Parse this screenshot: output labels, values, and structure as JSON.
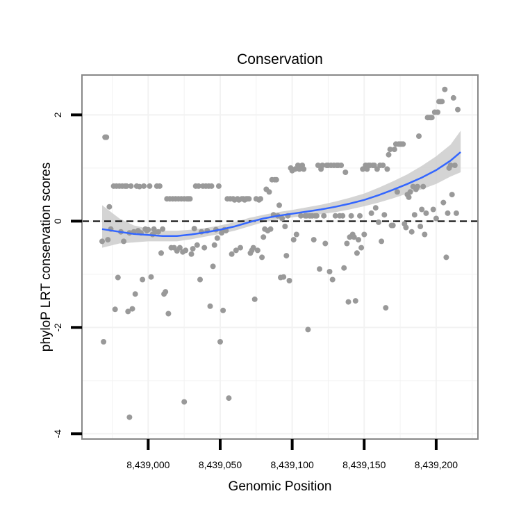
{
  "chart_data": {
    "type": "scatter",
    "title": "Conservation",
    "xlabel": "Genomic Position",
    "ylabel": "phyloP LRT conservation scores",
    "xlim": [
      8438954,
      8439229
    ],
    "ylim": [
      -4.1,
      2.75
    ],
    "xticks": [
      8439000,
      8439050,
      8439100,
      8439150,
      8439200
    ],
    "xtick_labels": [
      "8,439,000",
      "8,439,050",
      "8,439,100",
      "8,439,150",
      "8,439,200"
    ],
    "yticks": [
      -4,
      -2,
      0,
      2
    ],
    "ytick_labels": [
      "-4",
      "-2",
      "0",
      "2"
    ],
    "reference_line": {
      "y": 0,
      "style": "dashed",
      "color": "#000000"
    },
    "colors": {
      "points": "#999999",
      "smooth_line": "#3366ff",
      "confidence_band": "#cccccc",
      "panel_border": "#888888",
      "grid": "#f2f2f2"
    },
    "grid": true,
    "series": [
      {
        "name": "phyloP scores",
        "points": [
          [
            8438968,
            -0.38
          ],
          [
            8438969,
            -2.27
          ],
          [
            8438970,
            1.58
          ],
          [
            8438971,
            1.58
          ],
          [
            8438972,
            -0.35
          ],
          [
            8438973,
            0.27
          ],
          [
            8438974,
            -0.15
          ],
          [
            8438976,
            0.66
          ],
          [
            8438977,
            -1.66
          ],
          [
            8438978,
            0.66
          ],
          [
            8438979,
            -1.06
          ],
          [
            8438980,
            0.66
          ],
          [
            8438981,
            -0.2
          ],
          [
            8438982,
            0.66
          ],
          [
            8438983,
            -0.38
          ],
          [
            8438984,
            0.66
          ],
          [
            8438985,
            0.66
          ],
          [
            8438986,
            -1.7
          ],
          [
            8438987,
            -0.22
          ],
          [
            8438987,
            -3.69
          ],
          [
            8438988,
            0.66
          ],
          [
            8438989,
            -1.65
          ],
          [
            8438990,
            -0.2
          ],
          [
            8438991,
            -1.37
          ],
          [
            8438992,
            0.66
          ],
          [
            8438993,
            -0.18
          ],
          [
            8438994,
            0.65
          ],
          [
            8438995,
            -0.22
          ],
          [
            8438996,
            -1.1
          ],
          [
            8438997,
            0.66
          ],
          [
            8438998,
            -0.15
          ],
          [
            8438999,
            -0.18
          ],
          [
            8439000,
            -0.16
          ],
          [
            8439001,
            0.66
          ],
          [
            8439002,
            -1.05
          ],
          [
            8439003,
            -0.25
          ],
          [
            8439004,
            -0.15
          ],
          [
            8439005,
            -0.2
          ],
          [
            8439006,
            0.66
          ],
          [
            8439007,
            -0.2
          ],
          [
            8439008,
            0.66
          ],
          [
            8439009,
            -0.6
          ],
          [
            8439010,
            -0.15
          ],
          [
            8439011,
            -1.37
          ],
          [
            8439012,
            -1.33
          ],
          [
            8439013,
            0.42
          ],
          [
            8439014,
            -1.74
          ],
          [
            8439015,
            0.42
          ],
          [
            8439016,
            -0.5
          ],
          [
            8439017,
            0.42
          ],
          [
            8439018,
            -0.5
          ],
          [
            8439019,
            0.42
          ],
          [
            8439020,
            -0.56
          ],
          [
            8439021,
            0.42
          ],
          [
            8439022,
            -0.5
          ],
          [
            8439023,
            0.42
          ],
          [
            8439024,
            -0.58
          ],
          [
            8439025,
            0.42
          ],
          [
            8439025,
            -3.4
          ],
          [
            8439026,
            -0.55
          ],
          [
            8439027,
            0.42
          ],
          [
            8439028,
            0.42
          ],
          [
            8439029,
            0.42
          ],
          [
            8439030,
            -0.62
          ],
          [
            8439031,
            -0.52
          ],
          [
            8439032,
            -0.14
          ],
          [
            8439033,
            0.66
          ],
          [
            8439034,
            -0.45
          ],
          [
            8439035,
            0.66
          ],
          [
            8439036,
            -1.1
          ],
          [
            8439037,
            -0.2
          ],
          [
            8439038,
            0.66
          ],
          [
            8439039,
            -0.5
          ],
          [
            8439040,
            0.66
          ],
          [
            8439041,
            -0.18
          ],
          [
            8439042,
            0.66
          ],
          [
            8439043,
            -1.6
          ],
          [
            8439044,
            0.66
          ],
          [
            8439045,
            -0.85
          ],
          [
            8439046,
            -0.45
          ],
          [
            8439047,
            -0.16
          ],
          [
            8439048,
            -0.32
          ],
          [
            8439049,
            0.66
          ],
          [
            8439050,
            -2.27
          ],
          [
            8439051,
            -0.22
          ],
          [
            8439052,
            -1.68
          ],
          [
            8439053,
            -0.16
          ],
          [
            8439054,
            -0.18
          ],
          [
            8439055,
            0.42
          ],
          [
            8439056,
            -3.33
          ],
          [
            8439057,
            0.42
          ],
          [
            8439058,
            -0.62
          ],
          [
            8439059,
            0.42
          ],
          [
            8439060,
            0.4
          ],
          [
            8439061,
            -0.55
          ],
          [
            8439062,
            0.42
          ],
          [
            8439063,
            0.4
          ],
          [
            8439064,
            -0.5
          ],
          [
            8439065,
            0.42
          ],
          [
            8439066,
            0.42
          ],
          [
            8439067,
            0.4
          ],
          [
            8439068,
            0.42
          ],
          [
            8439069,
            0.42
          ],
          [
            8439070,
            0.42
          ],
          [
            8439071,
            -0.6
          ],
          [
            8439072,
            -0.55
          ],
          [
            8439073,
            -0.5
          ],
          [
            8439074,
            -1.47
          ],
          [
            8439075,
            0.42
          ],
          [
            8439076,
            -0.55
          ],
          [
            8439077,
            0.4
          ],
          [
            8439078,
            0.42
          ],
          [
            8439079,
            -0.68
          ],
          [
            8439080,
            -0.3
          ],
          [
            8439081,
            -0.15
          ],
          [
            8439082,
            0.6
          ],
          [
            8439083,
            -0.18
          ],
          [
            8439084,
            0.55
          ],
          [
            8439085,
            -0.15
          ],
          [
            8439086,
            0.78
          ],
          [
            8439087,
            0.12
          ],
          [
            8439088,
            0.78
          ],
          [
            8439089,
            0.78
          ],
          [
            8439090,
            0.1
          ],
          [
            8439091,
            0.3
          ],
          [
            8439092,
            -1.06
          ],
          [
            8439093,
            0.05
          ],
          [
            8439094,
            -1.05
          ],
          [
            8439095,
            -0.1
          ],
          [
            8439096,
            -0.65
          ],
          [
            8439097,
            0.1
          ],
          [
            8439098,
            -1.12
          ],
          [
            8439099,
            1.0
          ],
          [
            8439100,
            0.95
          ],
          [
            8439101,
            -0.35
          ],
          [
            8439102,
            0.98
          ],
          [
            8439103,
            -0.25
          ],
          [
            8439104,
            1.05
          ],
          [
            8439105,
            0.98
          ],
          [
            8439106,
            0.1
          ],
          [
            8439107,
            1.05
          ],
          [
            8439108,
            0.98
          ],
          [
            8439109,
            0.1
          ],
          [
            8439110,
            0.1
          ],
          [
            8439111,
            -2.04
          ],
          [
            8439112,
            0.1
          ],
          [
            8439113,
            0.1
          ],
          [
            8439114,
            0.1
          ],
          [
            8439115,
            -0.35
          ],
          [
            8439116,
            0.1
          ],
          [
            8439117,
            0.1
          ],
          [
            8439118,
            1.05
          ],
          [
            8439119,
            -0.9
          ],
          [
            8439120,
            0.98
          ],
          [
            8439121,
            1.05
          ],
          [
            8439122,
            0.1
          ],
          [
            8439123,
            -0.42
          ],
          [
            8439124,
            1.05
          ],
          [
            8439125,
            1.05
          ],
          [
            8439126,
            -0.95
          ],
          [
            8439127,
            1.05
          ],
          [
            8439128,
            -1.1
          ],
          [
            8439129,
            1.05
          ],
          [
            8439130,
            0.1
          ],
          [
            8439131,
            1.05
          ],
          [
            8439132,
            1.05
          ],
          [
            8439133,
            0.1
          ],
          [
            8439134,
            1.05
          ],
          [
            8439135,
            0.1
          ],
          [
            8439136,
            -0.88
          ],
          [
            8439137,
            0.92
          ],
          [
            8439138,
            -0.42
          ],
          [
            8439139,
            -1.52
          ],
          [
            8439140,
            -0.3
          ],
          [
            8439141,
            0.1
          ],
          [
            8439142,
            -0.25
          ],
          [
            8439143,
            -0.3
          ],
          [
            8439144,
            -1.5
          ],
          [
            8439145,
            -0.6
          ],
          [
            8439146,
            -0.35
          ],
          [
            8439147,
            0.1
          ],
          [
            8439148,
            -0.5
          ],
          [
            8439149,
            0.98
          ],
          [
            8439150,
            -0.25
          ],
          [
            8439151,
            1.05
          ],
          [
            8439152,
            0.98
          ],
          [
            8439153,
            1.05
          ],
          [
            8439154,
            1.05
          ],
          [
            8439155,
            0.15
          ],
          [
            8439156,
            1.05
          ],
          [
            8439157,
            1.05
          ],
          [
            8439158,
            0.25
          ],
          [
            8439159,
            0.98
          ],
          [
            8439160,
            -0.02
          ],
          [
            8439161,
            1.05
          ],
          [
            8439162,
            -0.38
          ],
          [
            8439163,
            1.05
          ],
          [
            8439164,
            0.12
          ],
          [
            8439165,
            -1.63
          ],
          [
            8439166,
            0.98
          ],
          [
            8439167,
            1.25
          ],
          [
            8439168,
            1.35
          ],
          [
            8439169,
            -0.08
          ],
          [
            8439170,
            -0.08
          ],
          [
            8439171,
            1.35
          ],
          [
            8439172,
            1.45
          ],
          [
            8439173,
            0.55
          ],
          [
            8439174,
            1.45
          ],
          [
            8439175,
            1.45
          ],
          [
            8439176,
            1.45
          ],
          [
            8439177,
            1.45
          ],
          [
            8439178,
            -0.05
          ],
          [
            8439179,
            -0.12
          ],
          [
            8439180,
            0.5
          ],
          [
            8439181,
            0.45
          ],
          [
            8439182,
            0.55
          ],
          [
            8439183,
            -0.2
          ],
          [
            8439184,
            0.65
          ],
          [
            8439185,
            0.12
          ],
          [
            8439186,
            0.6
          ],
          [
            8439187,
            0.65
          ],
          [
            8439188,
            1.6
          ],
          [
            8439189,
            -0.1
          ],
          [
            8439190,
            0.22
          ],
          [
            8439191,
            0.65
          ],
          [
            8439192,
            -0.25
          ],
          [
            8439193,
            0.15
          ],
          [
            8439194,
            1.95
          ],
          [
            8439195,
            1.95
          ],
          [
            8439196,
            1.95
          ],
          [
            8439197,
            1.95
          ],
          [
            8439198,
            0.22
          ],
          [
            8439199,
            2.05
          ],
          [
            8439200,
            0.05
          ],
          [
            8439201,
            2.05
          ],
          [
            8439202,
            2.25
          ],
          [
            8439203,
            2.25
          ],
          [
            8439204,
            2.25
          ],
          [
            8439205,
            0.35
          ],
          [
            8439206,
            2.48
          ],
          [
            8439207,
            -0.68
          ],
          [
            8439208,
            0.15
          ],
          [
            8439209,
            1.0
          ],
          [
            8439210,
            1.05
          ],
          [
            8439211,
            0.5
          ],
          [
            8439212,
            2.32
          ],
          [
            8439213,
            1.05
          ],
          [
            8439214,
            0.15
          ],
          [
            8439215,
            2.1
          ]
        ]
      }
    ],
    "smooth": {
      "x": [
        8438968,
        8438980,
        8438990,
        8439000,
        8439010,
        8439020,
        8439030,
        8439040,
        8439050,
        8439060,
        8439070,
        8439080,
        8439090,
        8439100,
        8439110,
        8439120,
        8439130,
        8439140,
        8439150,
        8439160,
        8439170,
        8439180,
        8439190,
        8439200,
        8439210,
        8439217
      ],
      "y": [
        -0.15,
        -0.2,
        -0.24,
        -0.26,
        -0.28,
        -0.28,
        -0.25,
        -0.21,
        -0.16,
        -0.1,
        -0.02,
        0.05,
        0.1,
        0.14,
        0.18,
        0.22,
        0.27,
        0.33,
        0.4,
        0.49,
        0.59,
        0.7,
        0.82,
        0.96,
        1.14,
        1.3
      ],
      "lower": [
        -0.5,
        -0.42,
        -0.4,
        -0.38,
        -0.38,
        -0.38,
        -0.34,
        -0.29,
        -0.24,
        -0.18,
        -0.1,
        -0.02,
        0.03,
        0.07,
        0.1,
        0.13,
        0.17,
        0.22,
        0.28,
        0.35,
        0.43,
        0.52,
        0.6,
        0.7,
        0.84,
        0.92
      ],
      "upper": [
        0.3,
        0.05,
        -0.08,
        -0.14,
        -0.18,
        -0.18,
        -0.16,
        -0.13,
        -0.08,
        -0.02,
        0.06,
        0.12,
        0.17,
        0.21,
        0.26,
        0.31,
        0.37,
        0.44,
        0.52,
        0.63,
        0.75,
        0.88,
        1.04,
        1.22,
        1.44,
        1.7
      ]
    }
  }
}
